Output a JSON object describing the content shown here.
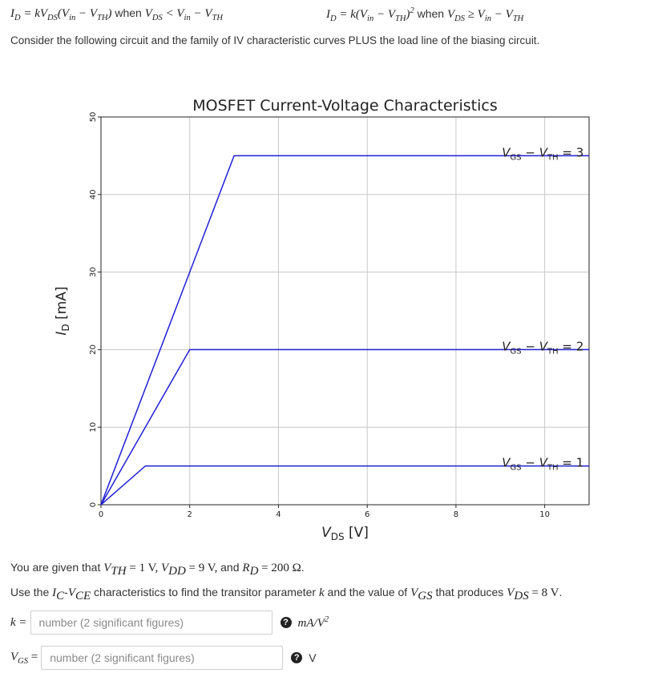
{
  "equations": {
    "linear": "I_D = kV_DS(V_in − V_TH) when V_DS < V_in − V_TH",
    "saturation": "I_D = k(V_in − V_TH)² when V_DS ≥ V_in − V_TH",
    "linear_parts": {
      "lhs": "I",
      "lhs_sub": "D",
      "rhs1": " = kV",
      "rhs1_sub": "DS",
      "rhs2": "(V",
      "rhs2_sub": "in",
      "rhs3": " − V",
      "rhs3_sub": "TH",
      "rhs4": ")",
      "when": " when ",
      "c1": "V",
      "c1_sub": "DS",
      "c2": " < V",
      "c2_sub": "in",
      "c3": " − V",
      "c3_sub": "TH"
    },
    "sat_parts": {
      "lhs": "I",
      "lhs_sub": "D",
      "rhs1": " = k(V",
      "rhs1_sub": "in",
      "rhs2": " − V",
      "rhs2_sub": "TH",
      "rhs3": ")",
      "rhs3_sup": "2",
      "when": " when ",
      "c1": "V",
      "c1_sub": "DS",
      "c2": " ≥ V",
      "c2_sub": "in",
      "c3": " − V",
      "c3_sub": "TH"
    }
  },
  "intro_text": "Consider the following circuit and the family of IV characteristic curves PLUS the load line of the biasing circuit.",
  "chart_data": {
    "type": "line",
    "title": "MOSFET Current-Voltage Characteristics",
    "xlabel": "V_DS [V]",
    "ylabel": "I_D [mA]",
    "xlim": [
      0,
      11
    ],
    "ylim": [
      0,
      50
    ],
    "x_ticks": [
      "0",
      "2",
      "4",
      "6",
      "8",
      "10"
    ],
    "y_ticks": [
      "0",
      "10",
      "20",
      "30",
      "40",
      "50"
    ],
    "grid": true,
    "series": [
      {
        "name": "V_GS − V_TH = 1",
        "x": [
          0,
          1,
          11
        ],
        "y": [
          0,
          5,
          5
        ],
        "color": "#1f1fd6"
      },
      {
        "name": "V_GS − V_TH = 2",
        "x": [
          0,
          2,
          11
        ],
        "y": [
          0,
          20,
          20
        ],
        "color": "#1f1fd6"
      },
      {
        "name": "V_GS − V_TH = 3",
        "x": [
          0,
          3,
          11
        ],
        "y": [
          0,
          45,
          45
        ],
        "color": "#1f1fd6"
      }
    ],
    "annotations": [
      {
        "text": "V_GS − V_TH = 3",
        "x": 9,
        "y": 45
      },
      {
        "text": "V_GS − V_TH = 2",
        "x": 9,
        "y": 20
      },
      {
        "text": "V_GS − V_TH = 1",
        "x": 9,
        "y": 5
      }
    ]
  },
  "given": {
    "prefix": "You are given that ",
    "vth": "V",
    "vth_sub": "TH",
    "vth_val": " = 1 V, ",
    "vdd": "V",
    "vdd_sub": "DD",
    "vdd_val": " = 9 V, ",
    "and": "and ",
    "rd": "R",
    "rd_sub": "D",
    "rd_val": " = 200 Ω",
    "period": "."
  },
  "use": {
    "p1": "Use the ",
    "ic": "I",
    "ic_sub": "C",
    "dash": "-",
    "vce": "V",
    "vce_sub": "CE",
    "p2": " characteristics to find the transitor parameter ",
    "k": "k",
    "p3": " and the value of ",
    "vgs": "V",
    "vgs_sub": "GS",
    "p4": " that produces ",
    "vds": "V",
    "vds_sub": "DS",
    "vds_val": " = 8 V",
    "period": "."
  },
  "k_field": {
    "label": "k =",
    "placeholder": "number (2 significant figures)",
    "help_icon": "?",
    "unit": "mA/V",
    "unit_sup": "2"
  },
  "vgs_field": {
    "label": "V",
    "label_sub": "GS",
    "label_eq": " =",
    "placeholder": "number (2 significant figures)",
    "help_icon": "?",
    "unit": "V"
  }
}
